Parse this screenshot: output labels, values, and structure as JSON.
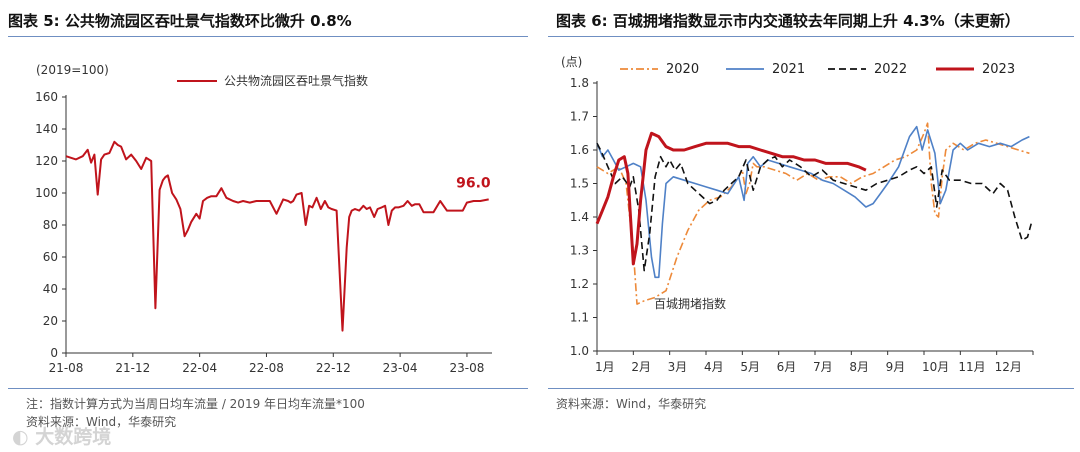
{
  "left": {
    "title": "图表 5:  公共物流园区吞吐景气指数环比微升 0.8%",
    "unit_label": "(2019=100)",
    "note": "注：指数计算方式为当周日均车流量 / 2019 年日均车流量*100",
    "source": "资料来源：Wind，华泰研究"
  },
  "right": {
    "title": "图表 6:  百城拥堵指数显示市内交通较去年同期上升 4.3%（未更新）",
    "source": "资料来源：Wind，华泰研究"
  },
  "watermark": "大数跨境",
  "chart_data": [
    {
      "type": "line",
      "title": "公共物流园区吞吐景气指数环比微升 0.8%",
      "ylabel": "(2019=100)",
      "ylim": [
        0,
        160
      ],
      "yticks": [
        0,
        20,
        40,
        60,
        80,
        100,
        120,
        140,
        160
      ],
      "xlim": [
        0,
        25.5
      ],
      "xticks": [
        {
          "x": 0,
          "label": "21-08"
        },
        {
          "x": 4,
          "label": "21-12"
        },
        {
          "x": 8,
          "label": "22-04"
        },
        {
          "x": 12,
          "label": "22-08"
        },
        {
          "x": 16,
          "label": "22-12"
        },
        {
          "x": 20,
          "label": "23-04"
        },
        {
          "x": 24,
          "label": "23-08"
        }
      ],
      "legend": [
        "公共物流园区吞吐景气指数"
      ],
      "color": "#c0141c",
      "annotation": {
        "text": "96.0",
        "x": 25.3,
        "y": 96.0
      },
      "series": [
        {
          "name": "公共物流园区吞吐景气指数",
          "x": [
            0,
            0.3,
            0.6,
            1.0,
            1.3,
            1.5,
            1.7,
            1.9,
            2.1,
            2.3,
            2.6,
            2.9,
            3.1,
            3.3,
            3.6,
            3.9,
            4.2,
            4.5,
            4.8,
            5.1,
            5.35,
            5.6,
            5.8,
            5.95,
            6.1,
            6.35,
            6.6,
            6.85,
            7.1,
            7.3,
            7.5,
            7.8,
            8.0,
            8.2,
            8.45,
            8.7,
            9.0,
            9.3,
            9.6,
            10.0,
            10.3,
            10.6,
            11.0,
            11.4,
            11.8,
            12.2,
            12.6,
            13.0,
            13.3,
            13.45,
            13.6,
            13.8,
            14.1,
            14.35,
            14.55,
            14.75,
            15.0,
            15.25,
            15.5,
            15.7,
            15.9,
            16.2,
            16.55,
            16.8,
            16.95,
            17.1,
            17.3,
            17.55,
            17.8,
            18.0,
            18.2,
            18.45,
            18.65,
            18.9,
            19.1,
            19.3,
            19.5,
            19.7,
            19.9,
            20.2,
            20.45,
            20.7,
            20.9,
            21.15,
            21.4,
            21.7,
            22.0,
            22.4,
            22.8,
            23.1,
            23.5,
            23.75,
            24.0,
            24.4,
            24.8,
            25.3
          ],
          "values": [
            123,
            122,
            121,
            123,
            127,
            119,
            124,
            99,
            121,
            124,
            125,
            132,
            130,
            129,
            121,
            124,
            120,
            115,
            122,
            120,
            28,
            102,
            108,
            110,
            111,
            100,
            96,
            90,
            73,
            77,
            82,
            87,
            84,
            95,
            97,
            98,
            98,
            103,
            97,
            95,
            94,
            95,
            94,
            95,
            95,
            95,
            87,
            96,
            95,
            94,
            95,
            99,
            100,
            80,
            92,
            91,
            97,
            90,
            95,
            91,
            90,
            89,
            14,
            66,
            85,
            89,
            90,
            89,
            92,
            90,
            91,
            85,
            90,
            91,
            92,
            80,
            89,
            91,
            91,
            92,
            95,
            92,
            93,
            93,
            88,
            88,
            88,
            95,
            89,
            89,
            89,
            89,
            94,
            95,
            95,
            96
          ]
        }
      ]
    },
    {
      "type": "line",
      "title": "百城拥堵指数显示市内交通较去年同期上升 4.3%（未更新）",
      "ylabel": "(点)",
      "ylim": [
        1.0,
        1.8
      ],
      "yticks": [
        1.0,
        1.1,
        1.2,
        1.3,
        1.4,
        1.5,
        1.6,
        1.7,
        1.8
      ],
      "xlim": [
        0,
        12
      ],
      "xticks": [
        {
          "x": 0,
          "label": "1月"
        },
        {
          "x": 1,
          "label": "2月"
        },
        {
          "x": 2,
          "label": "3月"
        },
        {
          "x": 3,
          "label": "4月"
        },
        {
          "x": 4,
          "label": "5月"
        },
        {
          "x": 5,
          "label": "6月"
        },
        {
          "x": 6,
          "label": "7月"
        },
        {
          "x": 7,
          "label": "8月"
        },
        {
          "x": 8,
          "label": "9月"
        },
        {
          "x": 9,
          "label": "10月"
        },
        {
          "x": 10,
          "label": "11月"
        },
        {
          "x": 11,
          "label": "12月"
        }
      ],
      "legend": [
        "2020",
        "2021",
        "2022",
        "2023"
      ],
      "annotation": {
        "text": "百城拥堵指数",
        "x": 1.55,
        "y": 1.13
      },
      "series": [
        {
          "name": "2020",
          "color": "#ed8a3a",
          "style": "dashdot",
          "x": [
            0,
            0.3,
            0.6,
            0.8,
            0.9,
            1.0,
            1.1,
            1.3,
            1.6,
            1.9,
            2.2,
            2.5,
            2.8,
            3.1,
            3.4,
            3.7,
            3.9,
            4.0,
            4.1,
            4.2,
            4.3,
            4.4,
            4.6,
            4.9,
            5.2,
            5.5,
            5.8,
            6.1,
            6.4,
            6.7,
            7.0,
            7.3,
            7.6,
            7.9,
            8.2,
            8.5,
            8.8,
            9.0,
            9.1,
            9.2,
            9.3,
            9.4,
            9.5,
            9.6,
            9.8,
            10.1,
            10.4,
            10.7,
            11.0,
            11.3,
            11.6,
            11.9
          ],
          "values": [
            1.55,
            1.53,
            1.55,
            1.5,
            1.4,
            1.3,
            1.14,
            1.15,
            1.16,
            1.18,
            1.28,
            1.36,
            1.42,
            1.45,
            1.46,
            1.49,
            1.52,
            1.54,
            1.47,
            1.5,
            1.56,
            1.55,
            1.55,
            1.54,
            1.53,
            1.51,
            1.53,
            1.51,
            1.52,
            1.52,
            1.5,
            1.52,
            1.53,
            1.55,
            1.57,
            1.58,
            1.6,
            1.65,
            1.68,
            1.5,
            1.41,
            1.4,
            1.52,
            1.6,
            1.62,
            1.6,
            1.62,
            1.63,
            1.62,
            1.61,
            1.6,
            1.59
          ]
        },
        {
          "name": "2021",
          "color": "#4f81c7",
          "style": "solid",
          "x": [
            0,
            0.15,
            0.3,
            0.45,
            0.6,
            0.8,
            1.0,
            1.2,
            1.35,
            1.5,
            1.6,
            1.7,
            1.8,
            1.9,
            2.1,
            2.4,
            2.7,
            3.0,
            3.3,
            3.6,
            3.9,
            4.05,
            4.15,
            4.3,
            4.5,
            4.7,
            5.0,
            5.3,
            5.6,
            5.9,
            6.2,
            6.5,
            6.8,
            7.1,
            7.4,
            7.6,
            7.8,
            8.0,
            8.3,
            8.6,
            8.8,
            8.95,
            9.1,
            9.3,
            9.45,
            9.6,
            9.8,
            10.0,
            10.2,
            10.5,
            10.8,
            11.1,
            11.4,
            11.7,
            11.9
          ],
          "values": [
            1.62,
            1.58,
            1.6,
            1.57,
            1.54,
            1.55,
            1.56,
            1.55,
            1.45,
            1.28,
            1.22,
            1.22,
            1.38,
            1.5,
            1.52,
            1.51,
            1.5,
            1.49,
            1.48,
            1.47,
            1.52,
            1.45,
            1.56,
            1.58,
            1.55,
            1.57,
            1.56,
            1.55,
            1.54,
            1.53,
            1.51,
            1.5,
            1.48,
            1.46,
            1.43,
            1.44,
            1.47,
            1.5,
            1.55,
            1.64,
            1.67,
            1.6,
            1.66,
            1.59,
            1.44,
            1.48,
            1.6,
            1.62,
            1.6,
            1.62,
            1.61,
            1.62,
            1.61,
            1.63,
            1.64
          ]
        },
        {
          "name": "2022",
          "color": "#111111",
          "style": "dashed",
          "x": [
            0,
            0.1,
            0.3,
            0.5,
            0.7,
            0.9,
            1.0,
            1.15,
            1.3,
            1.45,
            1.6,
            1.75,
            1.9,
            2.0,
            2.15,
            2.3,
            2.5,
            2.7,
            2.9,
            3.1,
            3.3,
            3.5,
            3.7,
            3.9,
            4.1,
            4.3,
            4.5,
            4.7,
            4.9,
            5.1,
            5.3,
            5.6,
            5.9,
            6.2,
            6.5,
            6.8,
            7.1,
            7.4,
            7.7,
            8.0,
            8.3,
            8.6,
            8.8,
            9.0,
            9.2,
            9.35,
            9.5,
            9.7,
            10.0,
            10.3,
            10.6,
            10.9,
            11.1,
            11.3,
            11.5,
            11.7,
            11.85,
            11.95
          ],
          "values": [
            1.62,
            1.6,
            1.55,
            1.5,
            1.52,
            1.49,
            1.52,
            1.42,
            1.24,
            1.35,
            1.52,
            1.58,
            1.55,
            1.57,
            1.54,
            1.56,
            1.5,
            1.48,
            1.46,
            1.44,
            1.45,
            1.48,
            1.5,
            1.52,
            1.57,
            1.48,
            1.55,
            1.57,
            1.58,
            1.55,
            1.57,
            1.55,
            1.52,
            1.54,
            1.51,
            1.5,
            1.49,
            1.48,
            1.5,
            1.51,
            1.52,
            1.54,
            1.55,
            1.53,
            1.55,
            1.43,
            1.54,
            1.51,
            1.51,
            1.5,
            1.5,
            1.47,
            1.5,
            1.48,
            1.4,
            1.33,
            1.34,
            1.38
          ]
        },
        {
          "name": "2023",
          "color": "#c0141c",
          "style": "solid-thick",
          "x": [
            0,
            0.15,
            0.3,
            0.45,
            0.6,
            0.75,
            0.85,
            1.0,
            1.1,
            1.2,
            1.35,
            1.5,
            1.7,
            1.9,
            2.1,
            2.4,
            2.7,
            3.0,
            3.3,
            3.6,
            3.9,
            4.2,
            4.5,
            4.8,
            5.1,
            5.4,
            5.7,
            6.0,
            6.3,
            6.6,
            6.9,
            7.2,
            7.4
          ],
          "values": [
            1.38,
            1.42,
            1.46,
            1.52,
            1.57,
            1.58,
            1.53,
            1.26,
            1.32,
            1.45,
            1.6,
            1.65,
            1.64,
            1.61,
            1.6,
            1.6,
            1.61,
            1.62,
            1.62,
            1.62,
            1.61,
            1.61,
            1.6,
            1.59,
            1.58,
            1.58,
            1.57,
            1.57,
            1.56,
            1.56,
            1.56,
            1.55,
            1.54
          ]
        }
      ]
    }
  ]
}
